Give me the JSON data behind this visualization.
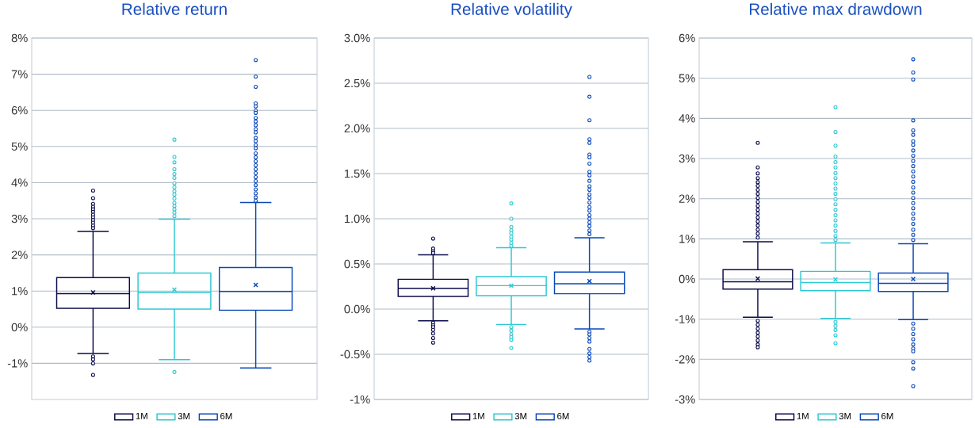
{
  "chart_data": [
    {
      "type": "box",
      "title": "Relative return",
      "categories": [
        null
      ],
      "grid": "y",
      "legend": "bottom",
      "marker": "circle",
      "ylim": [
        -2,
        8
      ],
      "yticks": [
        {
          "value": -1,
          "label": "-1%"
        },
        {
          "value": 0,
          "label": "0%"
        },
        {
          "value": 1,
          "label": "1%"
        },
        {
          "value": 2,
          "label": "2%"
        },
        {
          "value": 3,
          "label": "3%"
        },
        {
          "value": 4,
          "label": "4%"
        },
        {
          "value": 5,
          "label": "5%"
        },
        {
          "value": 6,
          "label": "6%"
        },
        {
          "value": 7,
          "label": "7%"
        },
        {
          "value": 8,
          "label": "8%"
        }
      ],
      "series": [
        {
          "name": "1M",
          "color": "#0b0b4b",
          "boxes": [
            {
              "low": -0.73,
              "q1": 0.52,
              "median": 0.93,
              "q3": 1.37,
              "high": 2.65,
              "mean": 0.96,
              "outliers": [
                3.78,
                3.57,
                3.41,
                3.33,
                3.26,
                3.19,
                3.11,
                3.04,
                2.96,
                2.89,
                2.81,
                2.74,
                -0.81,
                -0.89,
                -1.0,
                -1.32
              ]
            }
          ]
        },
        {
          "name": "3M",
          "color": "#2ec8d2",
          "boxes": [
            {
              "low": -0.9,
              "q1": 0.5,
              "median": 0.96,
              "q3": 1.5,
              "high": 2.99,
              "mean": 1.04,
              "outliers": [
                5.19,
                4.71,
                4.56,
                4.37,
                4.24,
                4.13,
                3.98,
                3.87,
                3.76,
                3.67,
                3.56,
                3.44,
                3.35,
                3.26,
                3.17,
                3.07,
                -1.24
              ]
            }
          ]
        },
        {
          "name": "6M",
          "color": "#0a48b8",
          "boxes": [
            {
              "low": -1.13,
              "q1": 0.47,
              "median": 0.99,
              "q3": 1.65,
              "high": 3.45,
              "mean": 1.17,
              "outliers": [
                7.39,
                6.93,
                6.65,
                6.19,
                6.11,
                5.99,
                5.93,
                5.79,
                5.69,
                5.59,
                5.48,
                5.39,
                5.24,
                5.15,
                5.04,
                4.95,
                4.81,
                4.7,
                4.59,
                4.48,
                4.37,
                4.26,
                4.15,
                4.04,
                3.93,
                3.81,
                3.7,
                3.59,
                3.5
              ]
            }
          ]
        }
      ]
    },
    {
      "type": "box",
      "title": "Relative volatility",
      "categories": [
        null
      ],
      "grid": "y",
      "legend": "bottom",
      "marker": "circle",
      "ylim": [
        -1,
        3
      ],
      "yticks": [
        {
          "value": -1,
          "label": "-1%"
        },
        {
          "value": -0.5,
          "label": "-0.5%"
        },
        {
          "value": 0,
          "label": "0.0%"
        },
        {
          "value": 0.5,
          "label": "0.5%"
        },
        {
          "value": 1,
          "label": "1.0%"
        },
        {
          "value": 1.5,
          "label": "1.5%"
        },
        {
          "value": 2,
          "label": "2.0%"
        },
        {
          "value": 2.5,
          "label": "2.5%"
        },
        {
          "value": 3,
          "label": "3.0%"
        }
      ],
      "series": [
        {
          "name": "1M",
          "color": "#0b0b4b",
          "boxes": [
            {
              "low": -0.13,
              "q1": 0.14,
              "median": 0.23,
              "q3": 0.33,
              "high": 0.6,
              "mean": 0.23,
              "outliers": [
                0.78,
                0.67,
                0.64,
                0.62,
                -0.15,
                -0.18,
                -0.2,
                -0.23,
                -0.27,
                -0.32,
                -0.37
              ]
            }
          ]
        },
        {
          "name": "3M",
          "color": "#2ec8d2",
          "boxes": [
            {
              "low": -0.17,
              "q1": 0.15,
              "median": 0.26,
              "q3": 0.36,
              "high": 0.68,
              "mean": 0.26,
              "outliers": [
                1.17,
                1.0,
                0.91,
                0.87,
                0.84,
                0.8,
                0.77,
                0.73,
                0.7,
                -0.2,
                -0.24,
                -0.28,
                -0.31,
                -0.34,
                -0.43
              ]
            }
          ]
        },
        {
          "name": "6M",
          "color": "#0a48b8",
          "boxes": [
            {
              "low": -0.22,
              "q1": 0.17,
              "median": 0.28,
              "q3": 0.41,
              "high": 0.79,
              "mean": 0.31,
              "outliers": [
                2.57,
                2.35,
                2.09,
                1.88,
                1.84,
                1.71,
                1.68,
                1.61,
                1.52,
                1.48,
                1.42,
                1.36,
                1.32,
                1.27,
                1.23,
                1.18,
                1.13,
                1.09,
                1.04,
                1.0,
                0.96,
                0.92,
                0.87,
                0.83,
                -0.25,
                -0.28,
                -0.32,
                -0.36,
                -0.44,
                -0.49,
                -0.53,
                -0.57
              ]
            }
          ]
        }
      ]
    },
    {
      "type": "box",
      "title": "Relative max drawdown",
      "categories": [
        null
      ],
      "grid": "y",
      "legend": "bottom",
      "marker": "circle",
      "ylim": [
        -3,
        6
      ],
      "yticks": [
        {
          "value": -3,
          "label": "-3%"
        },
        {
          "value": -2,
          "label": "-2%"
        },
        {
          "value": -1,
          "label": "-1%"
        },
        {
          "value": 0,
          "label": "0%"
        },
        {
          "value": 1,
          "label": "1%"
        },
        {
          "value": 2,
          "label": "2%"
        },
        {
          "value": 3,
          "label": "3%"
        },
        {
          "value": 4,
          "label": "4%"
        },
        {
          "value": 5,
          "label": "5%"
        },
        {
          "value": 6,
          "label": "6%"
        }
      ],
      "series": [
        {
          "name": "1M",
          "color": "#0b0b4b",
          "boxes": [
            {
              "low": -0.95,
              "q1": -0.25,
              "median": -0.07,
              "q3": 0.23,
              "high": 0.93,
              "mean": 0.01,
              "outliers": [
                3.39,
                2.78,
                2.63,
                2.51,
                2.41,
                2.32,
                2.22,
                2.12,
                2.02,
                1.92,
                1.82,
                1.72,
                1.63,
                1.53,
                1.43,
                1.33,
                1.23,
                1.13,
                1.03,
                -1.04,
                -1.14,
                -1.24,
                -1.34,
                -1.43,
                -1.53,
                -1.63,
                -1.7
              ]
            }
          ]
        },
        {
          "name": "3M",
          "color": "#2ec8d2",
          "boxes": [
            {
              "low": -0.98,
              "q1": -0.29,
              "median": -0.09,
              "q3": 0.19,
              "high": 0.9,
              "mean": -0.01,
              "outliers": [
                4.28,
                3.66,
                3.32,
                3.05,
                2.91,
                2.78,
                2.64,
                2.51,
                2.38,
                2.25,
                2.12,
                1.99,
                1.86,
                1.72,
                1.59,
                1.46,
                1.33,
                1.2,
                1.07,
                0.97,
                -1.07,
                -1.17,
                -1.27,
                -1.4,
                -1.6
              ]
            }
          ]
        },
        {
          "name": "6M",
          "color": "#0a48b8",
          "boxes": [
            {
              "low": -1.01,
              "q1": -0.31,
              "median": -0.11,
              "q3": 0.15,
              "high": 0.88,
              "mean": 0.0,
              "outliers": [
                5.47,
                5.14,
                4.97,
                3.95,
                3.7,
                3.59,
                3.43,
                3.34,
                3.2,
                3.07,
                2.94,
                2.81,
                2.68,
                2.55,
                2.42,
                2.28,
                2.15,
                2.02,
                1.89,
                1.76,
                1.63,
                1.5,
                1.37,
                1.23,
                1.1,
                0.97,
                -1.11,
                -1.24,
                -1.37,
                -1.5,
                -1.63,
                -1.73,
                -1.8,
                -2.07,
                -2.23,
                -2.67
              ]
            }
          ]
        }
      ]
    }
  ]
}
